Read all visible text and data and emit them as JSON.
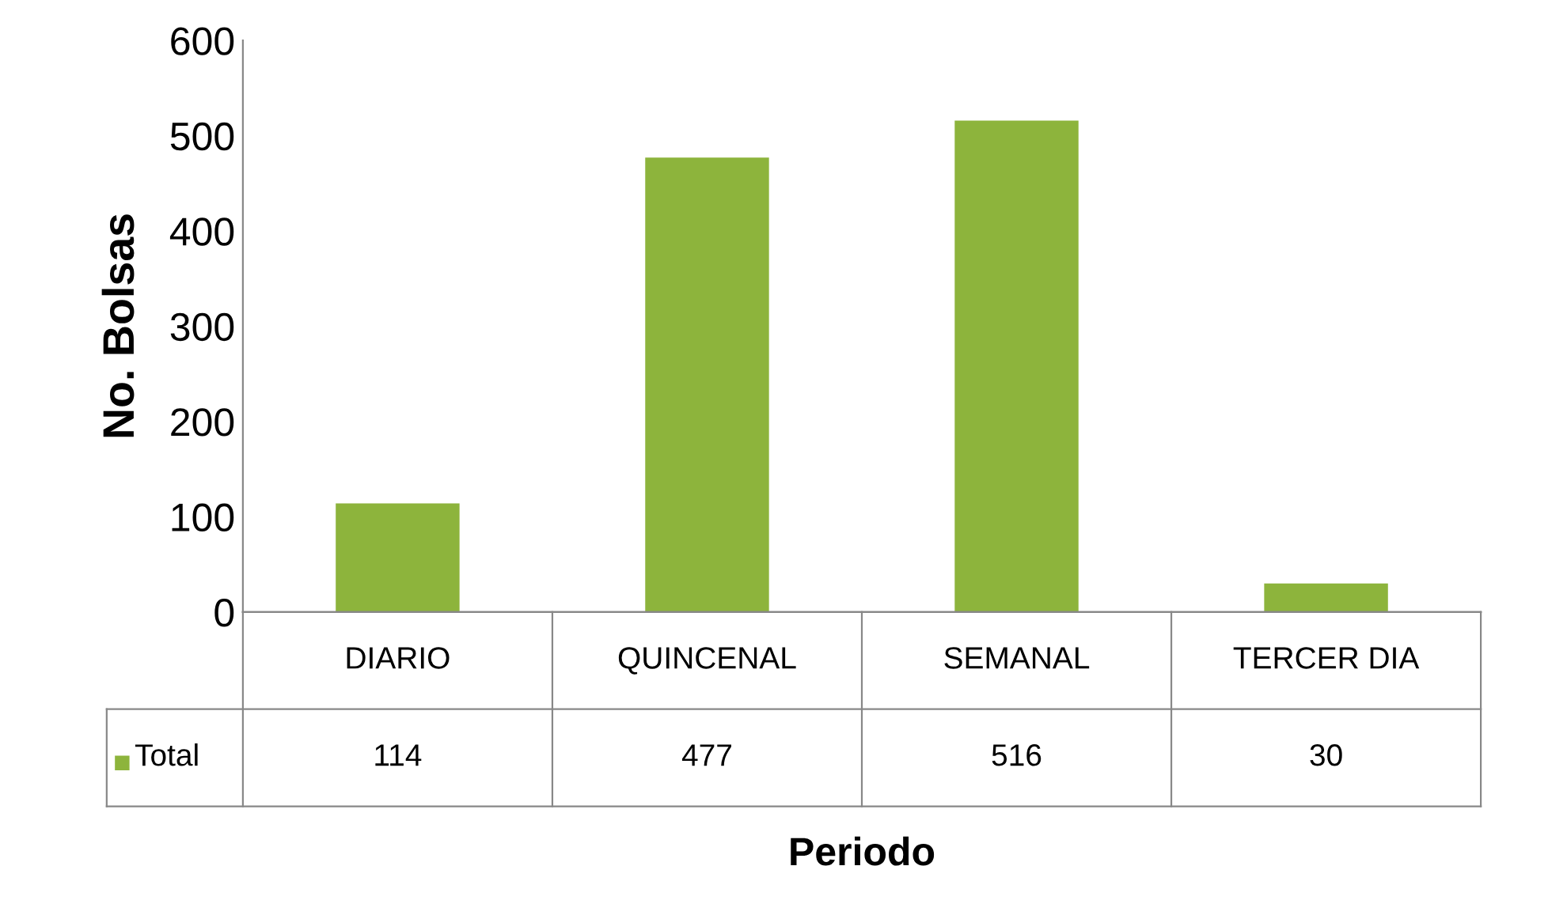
{
  "chart_data": {
    "type": "bar",
    "xlabel": "Periodo",
    "ylabel": "No. Bolsas",
    "categories": [
      "DIARIO",
      "QUINCENAL",
      "SEMANAL",
      "TERCER DIA"
    ],
    "series": [
      {
        "name": "Total",
        "color": "#8db43c",
        "values": [
          114,
          477,
          516,
          30
        ]
      }
    ],
    "ylim": [
      0,
      600
    ],
    "yticks": [
      0,
      100,
      200,
      300,
      400,
      500,
      600
    ],
    "data_labels": true,
    "legend": "bottom",
    "grid": false
  }
}
